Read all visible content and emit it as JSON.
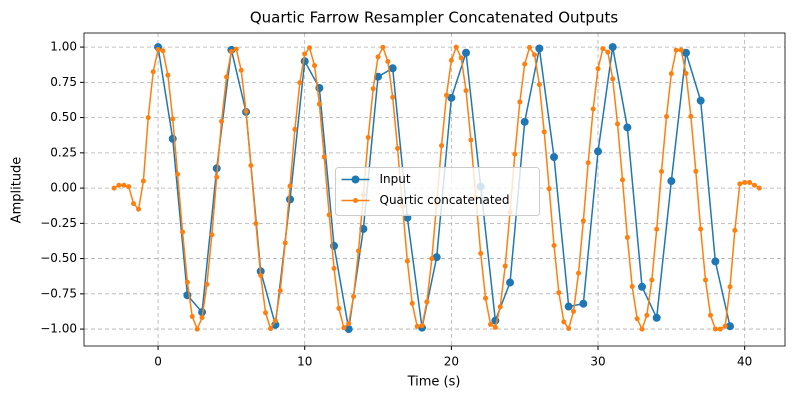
{
  "chart_data": {
    "type": "line",
    "title": "Quartic Farrow Resampler Concatenated Outputs",
    "xlabel": "Time (s)",
    "ylabel": "Amplitude",
    "xlim": [
      -5.05,
      42.75
    ],
    "ylim": [
      -1.12,
      1.1
    ],
    "xticks": [
      0,
      10,
      20,
      30,
      40
    ],
    "yticks": [
      {
        "value": -1,
        "label": "−1.00"
      },
      {
        "value": -0.75,
        "label": "−0.75"
      },
      {
        "value": -0.5,
        "label": "−0.50"
      },
      {
        "value": -0.25,
        "label": "−0.25"
      },
      {
        "value": 0,
        "label": "0.00"
      },
      {
        "value": 0.25,
        "label": "0.25"
      },
      {
        "value": 0.5,
        "label": "0.50"
      },
      {
        "value": 0.75,
        "label": "0.75"
      },
      {
        "value": 1,
        "label": "1.00"
      }
    ],
    "grid": true,
    "legend": "center",
    "series": [
      {
        "name": "Input",
        "color": "#1f77b4",
        "x": [
          0,
          1,
          2,
          3,
          4,
          5,
          6,
          7,
          8,
          9,
          10,
          11,
          12,
          13,
          14,
          15,
          16,
          17,
          18,
          19,
          20,
          21,
          22,
          23,
          24,
          25,
          26,
          27,
          28,
          29,
          30,
          31,
          32,
          33,
          34,
          35,
          36,
          37,
          38,
          39
        ],
        "values": [
          1.0,
          0.35,
          -0.76,
          -0.88,
          0.14,
          0.98,
          0.54,
          -0.59,
          -0.97,
          -0.08,
          0.9,
          0.71,
          -0.41,
          -1.0,
          -0.29,
          0.79,
          0.85,
          -0.21,
          -0.99,
          -0.49,
          0.64,
          0.96,
          0.01,
          -0.94,
          -0.67,
          0.47,
          0.99,
          0.22,
          -0.84,
          -0.82,
          0.26,
          1.0,
          0.43,
          -0.7,
          -0.92,
          0.05,
          0.96,
          0.62,
          -0.52,
          -0.98
        ]
      },
      {
        "name": "Quartic concatenated",
        "color": "#ff7f0e",
        "x": [
          -3,
          -2.67,
          -2.33,
          -2,
          -1.67,
          -1.33,
          -1,
          -0.67,
          -0.33,
          0,
          0.33,
          0.67,
          1,
          1.33,
          1.67,
          2,
          2.33,
          2.67,
          3,
          3.33,
          3.67,
          4,
          4.33,
          4.67,
          5,
          5.33,
          5.67,
          6,
          6.33,
          6.67,
          7,
          7.33,
          7.67,
          8,
          8.33,
          8.67,
          9,
          9.33,
          9.67,
          10,
          10.33,
          10.67,
          11,
          11.33,
          11.67,
          12,
          12.33,
          12.67,
          13,
          13.33,
          13.67,
          14,
          14.33,
          14.67,
          15,
          15.33,
          15.67,
          16,
          16.33,
          16.67,
          17,
          17.33,
          17.67,
          18,
          18.33,
          18.67,
          19,
          19.33,
          19.67,
          20,
          20.33,
          20.67,
          21,
          21.33,
          21.67,
          22,
          22.33,
          22.67,
          23,
          23.33,
          23.67,
          24,
          24.33,
          24.67,
          25,
          25.33,
          25.67,
          26,
          26.33,
          26.67,
          27,
          27.33,
          27.67,
          28,
          28.33,
          28.67,
          29,
          29.33,
          29.67,
          30,
          30.33,
          30.67,
          31,
          31.33,
          31.67,
          32,
          32.33,
          32.67,
          33,
          33.33,
          33.67,
          34,
          34.33,
          34.67,
          35,
          35.33,
          35.67,
          36,
          36.33,
          36.67,
          37,
          37.33,
          37.67,
          38,
          38.33,
          38.67,
          39,
          39.33,
          39.67,
          40,
          40.33,
          40.67,
          41
        ],
        "values": [
          0,
          0.02,
          0.02,
          0.01,
          -0.11,
          -0.15,
          0.05,
          0.5,
          0.825,
          0.983,
          0.974,
          0.801,
          0.491,
          0.098,
          -0.311,
          -0.668,
          -0.911,
          -1.0,
          -0.919,
          -0.683,
          -0.331,
          0.078,
          0.473,
          0.788,
          0.969,
          0.986,
          0.836,
          0.544,
          0.16,
          -0.251,
          -0.62,
          -0.884,
          -0.997,
          -0.942,
          -0.727,
          -0.389,
          0.015,
          0.417,
          0.748,
          0.952,
          0.995,
          0.869,
          0.596,
          0.221,
          -0.19,
          -0.57,
          -0.853,
          -0.991,
          -0.961,
          -0.769,
          -0.445,
          -0.047,
          0.359,
          0.705,
          0.931,
          0.999,
          0.898,
          0.644,
          0.282,
          -0.129,
          -0.518,
          -0.818,
          -0.981,
          -0.976,
          -0.807,
          -0.5,
          -0.109,
          0.301,
          0.659,
          0.906,
          1.0,
          0.924,
          0.691,
          0.341,
          -0.067,
          -0.463,
          -0.781,
          -0.967,
          -0.988,
          -0.842,
          -0.553,
          -0.171,
          0.241,
          0.611,
          0.879,
          0.997,
          0.946,
          0.734,
          0.399,
          -0.005,
          -0.407,
          -0.741,
          -0.949,
          -0.996,
          -0.874,
          -0.604,
          -0.232,
          0.18,
          0.561,
          0.847,
          0.989,
          0.964,
          0.775,
          0.455,
          0.058,
          -0.35,
          -0.698,
          -0.927,
          -1.0,
          -0.902,
          -0.652,
          -0.292,
          0.118,
          0.508,
          0.812,
          0.978,
          0.979,
          0.813,
          0.509,
          0.119,
          -0.291,
          -0.652,
          -0.902,
          -0.999,
          -1.0,
          -0.98,
          -0.7,
          -0.3,
          0.03,
          0.04,
          0.04,
          0.02,
          0.0
        ]
      }
    ]
  }
}
